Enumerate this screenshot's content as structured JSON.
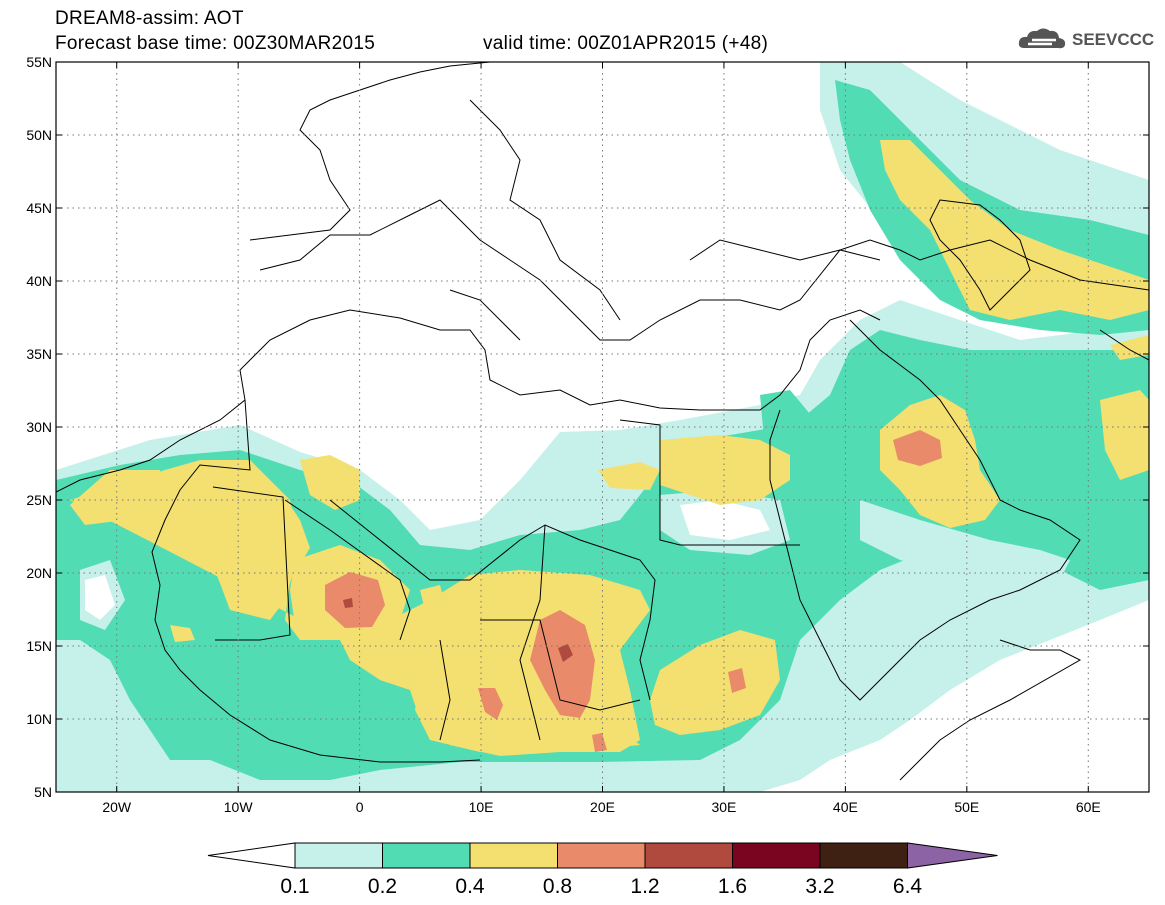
{
  "header": {
    "line1": "DREAM8-assim: AOT",
    "line2": "Forecast base time: 00Z30MAR2015",
    "valid": "valid time: 00Z01APR2015 (+48)",
    "logo_text": "SEEVCCC"
  },
  "map": {
    "lat_labels": [
      "55N",
      "50N",
      "45N",
      "40N",
      "35N",
      "30N",
      "25N",
      "20N",
      "15N",
      "10N",
      "5N"
    ],
    "lon_labels": [
      "20W",
      "10W",
      "0",
      "10E",
      "20E",
      "30E",
      "40E",
      "50E",
      "60E"
    ],
    "lat_range": [
      5,
      55
    ],
    "lon_range": [
      -25,
      65
    ],
    "grid": "dotted"
  },
  "legend": {
    "labels": [
      "0.1",
      "0.2",
      "0.4",
      "0.8",
      "1.2",
      "1.6",
      "3.2",
      "6.4"
    ],
    "colors": [
      "#ffffff",
      "#c6f1ea",
      "#52dcb4",
      "#f3e070",
      "#e98b6a",
      "#b04a3e",
      "#7a0521",
      "#3e2112",
      "#8c64a6"
    ]
  }
}
